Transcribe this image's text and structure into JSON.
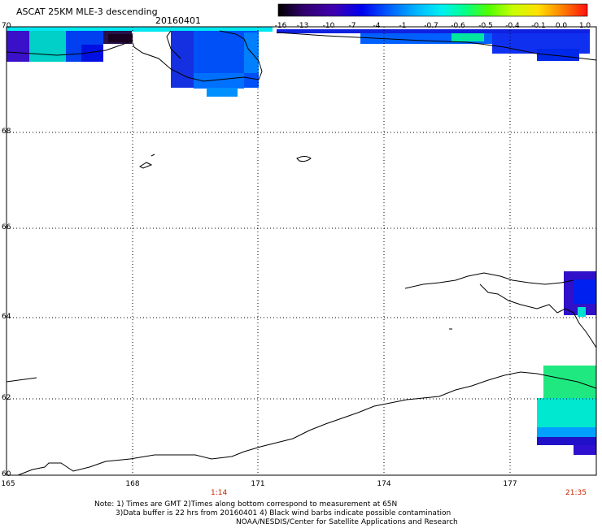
{
  "header": {
    "title": "ASCAT 25KM MLE-3 descending",
    "date": "20160401"
  },
  "colorbar": {
    "labels": [
      "-16",
      "-13",
      "-10",
      "-7",
      "-4",
      "-1",
      "-0.7",
      "-0.6",
      "-0.5",
      "-0.4",
      "-0.1",
      "0.0",
      "1.0"
    ],
    "colors": [
      "#000000",
      "#2a0050",
      "#3c00a0",
      "#0000e8",
      "#0050ff",
      "#00a8ff",
      "#00e8e8",
      "#00ff90",
      "#40ff00",
      "#c0ff00",
      "#ffe000",
      "#ff8000",
      "#ff0000"
    ]
  },
  "axes": {
    "lat_labels": [
      "70",
      "68",
      "66",
      "64",
      "62",
      "60"
    ],
    "lon_labels": [
      "165",
      "168",
      "171",
      "174",
      "177"
    ]
  },
  "times": {
    "start": "1:14",
    "end": "21:35"
  },
  "notes": {
    "line1": "Note: 1) Times are GMT 2)Times along bottom correspond to measurement at 65N",
    "line2": "3)Data buffer is 22 hrs from 20160401 4) Black wind barbs indicate possible contamination",
    "line3": "NOAA/NESDIS/Center for Satellite Applications and Research"
  }
}
